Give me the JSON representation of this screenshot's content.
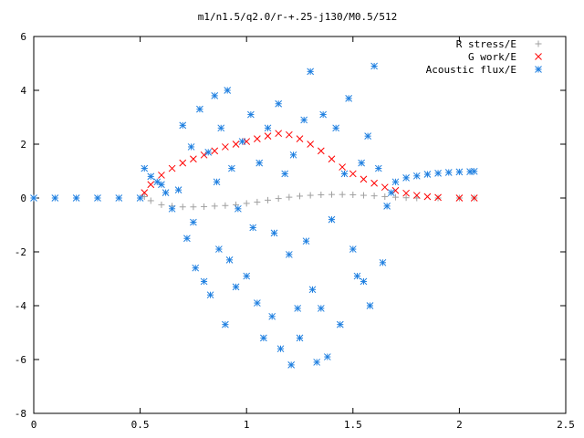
{
  "chart_data": {
    "type": "scatter",
    "title": "m1/n1.5/q2.0/r-+.25-j130/M0.5/512",
    "xlim": [
      0,
      2.5
    ],
    "ylim": [
      -8,
      6
    ],
    "xticks": [
      "0",
      "0.5",
      "1",
      "1.5",
      "2",
      "2.5"
    ],
    "yticks": [
      "-8",
      "-6",
      "-4",
      "-2",
      "0",
      "2",
      "4",
      "6"
    ],
    "legend_position": "top-right",
    "series": [
      {
        "name": "R stress/E",
        "marker": "+",
        "color": "#a0a0a0",
        "points": [
          [
            0.52,
            0.05
          ],
          [
            0.55,
            -0.1
          ],
          [
            0.6,
            -0.25
          ],
          [
            0.65,
            -0.3
          ],
          [
            0.7,
            -0.33
          ],
          [
            0.75,
            -0.33
          ],
          [
            0.8,
            -0.32
          ],
          [
            0.85,
            -0.3
          ],
          [
            0.9,
            -0.28
          ],
          [
            0.95,
            -0.25
          ],
          [
            1.0,
            -0.2
          ],
          [
            1.05,
            -0.15
          ],
          [
            1.1,
            -0.08
          ],
          [
            1.15,
            -0.02
          ],
          [
            1.2,
            0.03
          ],
          [
            1.25,
            0.07
          ],
          [
            1.3,
            0.1
          ],
          [
            1.35,
            0.12
          ],
          [
            1.4,
            0.13
          ],
          [
            1.45,
            0.13
          ],
          [
            1.5,
            0.12
          ],
          [
            1.55,
            0.1
          ],
          [
            1.6,
            0.08
          ],
          [
            1.65,
            0.05
          ],
          [
            1.7,
            0.03
          ],
          [
            1.75,
            0.01
          ],
          [
            1.8,
            0.0
          ],
          [
            1.9,
            0.0
          ],
          [
            2.0,
            0.0
          ],
          [
            2.07,
            0.0
          ]
        ]
      },
      {
        "name": "G work/E",
        "marker": "x",
        "color": "#ff0000",
        "points": [
          [
            0.52,
            0.2
          ],
          [
            0.55,
            0.5
          ],
          [
            0.6,
            0.85
          ],
          [
            0.65,
            1.1
          ],
          [
            0.7,
            1.3
          ],
          [
            0.75,
            1.45
          ],
          [
            0.8,
            1.6
          ],
          [
            0.85,
            1.75
          ],
          [
            0.9,
            1.9
          ],
          [
            0.95,
            2.0
          ],
          [
            1.0,
            2.1
          ],
          [
            1.05,
            2.2
          ],
          [
            1.1,
            2.3
          ],
          [
            1.15,
            2.4
          ],
          [
            1.2,
            2.35
          ],
          [
            1.25,
            2.2
          ],
          [
            1.3,
            2.0
          ],
          [
            1.35,
            1.75
          ],
          [
            1.4,
            1.45
          ],
          [
            1.45,
            1.15
          ],
          [
            1.5,
            0.9
          ],
          [
            1.55,
            0.7
          ],
          [
            1.6,
            0.55
          ],
          [
            1.65,
            0.4
          ],
          [
            1.7,
            0.28
          ],
          [
            1.75,
            0.18
          ],
          [
            1.8,
            0.1
          ],
          [
            1.85,
            0.05
          ],
          [
            1.9,
            0.02
          ],
          [
            2.0,
            0.0
          ],
          [
            2.07,
            0.0
          ]
        ]
      },
      {
        "name": "Acoustic flux/E",
        "marker": "*",
        "color": "#1e7fe0",
        "points": [
          [
            0.0,
            0.0
          ],
          [
            0.1,
            0.0
          ],
          [
            0.2,
            0.0
          ],
          [
            0.3,
            0.0
          ],
          [
            0.4,
            0.0
          ],
          [
            0.5,
            0.0
          ],
          [
            0.52,
            1.1
          ],
          [
            0.55,
            0.8
          ],
          [
            0.58,
            0.6
          ],
          [
            0.6,
            0.5
          ],
          [
            0.62,
            0.2
          ],
          [
            0.65,
            -0.4
          ],
          [
            0.68,
            0.3
          ],
          [
            0.7,
            2.7
          ],
          [
            0.72,
            -1.5
          ],
          [
            0.74,
            1.9
          ],
          [
            0.75,
            -0.9
          ],
          [
            0.76,
            -2.6
          ],
          [
            0.78,
            3.3
          ],
          [
            0.8,
            -3.1
          ],
          [
            0.82,
            1.7
          ],
          [
            0.83,
            -3.6
          ],
          [
            0.85,
            3.8
          ],
          [
            0.86,
            0.6
          ],
          [
            0.87,
            -1.9
          ],
          [
            0.88,
            2.6
          ],
          [
            0.9,
            -4.7
          ],
          [
            0.91,
            4.0
          ],
          [
            0.92,
            -2.3
          ],
          [
            0.93,
            1.1
          ],
          [
            0.95,
            -3.3
          ],
          [
            0.96,
            -0.4
          ],
          [
            0.98,
            2.1
          ],
          [
            1.0,
            -2.9
          ],
          [
            1.02,
            3.1
          ],
          [
            1.03,
            -1.1
          ],
          [
            1.05,
            -3.9
          ],
          [
            1.06,
            1.3
          ],
          [
            1.08,
            -5.2
          ],
          [
            1.1,
            2.6
          ],
          [
            1.12,
            -4.4
          ],
          [
            1.13,
            -1.3
          ],
          [
            1.15,
            3.5
          ],
          [
            1.16,
            -5.6
          ],
          [
            1.18,
            0.9
          ],
          [
            1.2,
            -2.1
          ],
          [
            1.21,
            -6.2
          ],
          [
            1.22,
            1.6
          ],
          [
            1.24,
            -4.1
          ],
          [
            1.25,
            -5.2
          ],
          [
            1.27,
            2.9
          ],
          [
            1.28,
            -1.6
          ],
          [
            1.3,
            4.7
          ],
          [
            1.31,
            -3.4
          ],
          [
            1.33,
            -6.1
          ],
          [
            1.35,
            -4.1
          ],
          [
            1.36,
            3.1
          ],
          [
            1.38,
            -5.9
          ],
          [
            1.4,
            -0.8
          ],
          [
            1.42,
            2.6
          ],
          [
            1.44,
            -4.7
          ],
          [
            1.46,
            0.9
          ],
          [
            1.48,
            3.7
          ],
          [
            1.5,
            -1.9
          ],
          [
            1.52,
            -2.9
          ],
          [
            1.54,
            1.3
          ],
          [
            1.55,
            -3.1
          ],
          [
            1.57,
            2.3
          ],
          [
            1.58,
            -4.0
          ],
          [
            1.6,
            4.9
          ],
          [
            1.62,
            1.1
          ],
          [
            1.64,
            -2.4
          ],
          [
            1.66,
            -0.3
          ],
          [
            1.68,
            0.2
          ],
          [
            1.7,
            0.6
          ],
          [
            1.75,
            0.75
          ],
          [
            1.8,
            0.82
          ],
          [
            1.85,
            0.88
          ],
          [
            1.9,
            0.92
          ],
          [
            1.95,
            0.95
          ],
          [
            2.0,
            0.97
          ],
          [
            2.05,
            0.98
          ],
          [
            2.07,
            0.99
          ]
        ]
      }
    ]
  }
}
